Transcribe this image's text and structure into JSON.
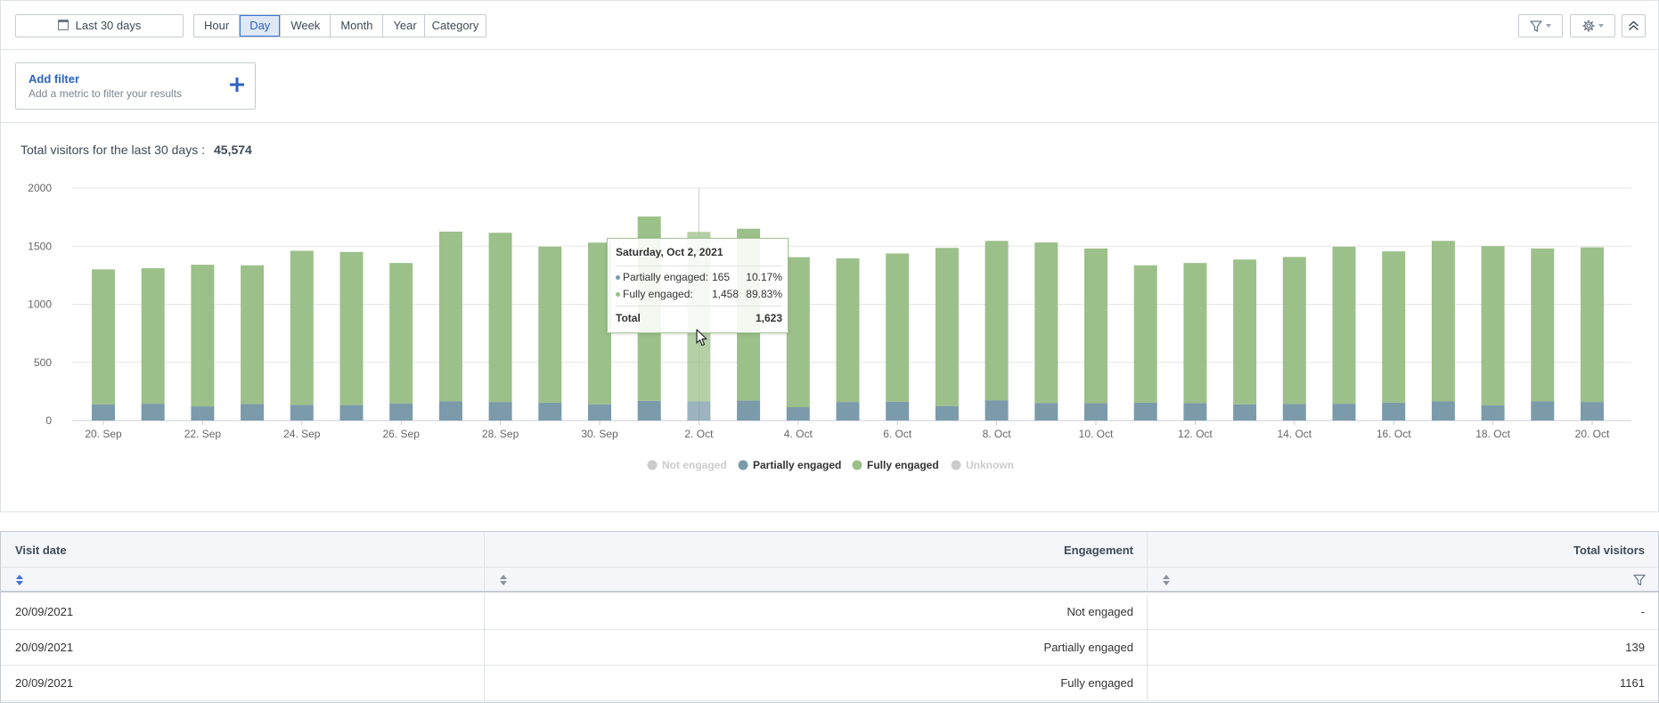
{
  "toolbar": {
    "date_range_label": "Last 30 days",
    "periods": [
      {
        "label": "Hour",
        "active": false
      },
      {
        "label": "Day",
        "active": true
      },
      {
        "label": "Week",
        "active": false
      },
      {
        "label": "Month",
        "active": false
      },
      {
        "label": "Year",
        "active": false
      }
    ],
    "category_label": "Category",
    "icons": [
      "calendar-icon",
      "funnel-icon",
      "gear-icon",
      "double-chevron-up-icon"
    ]
  },
  "filter": {
    "title": "Add filter",
    "subtitle": "Add a metric to filter your results"
  },
  "summary": {
    "label": "Total visitors for the last 30 days :",
    "value": "45,574"
  },
  "chart_data": {
    "type": "bar",
    "stacked": true,
    "categories": [
      "20. Sep",
      "21. Sep",
      "22. Sep",
      "23. Sep",
      "24. Sep",
      "25. Sep",
      "26. Sep",
      "27. Sep",
      "28. Sep",
      "29. Sep",
      "30. Sep",
      "1. Oct",
      "2. Oct",
      "3. Oct",
      "4. Oct",
      "5. Oct",
      "6. Oct",
      "7. Oct",
      "8. Oct",
      "9. Oct",
      "10. Oct",
      "11. Oct",
      "12. Oct",
      "13. Oct",
      "14. Oct",
      "15. Oct",
      "16. Oct",
      "17. Oct",
      "18. Oct",
      "19. Oct",
      "20. Oct"
    ],
    "tick_labels": [
      "20. Sep",
      "22. Sep",
      "24. Sep",
      "26. Sep",
      "28. Sep",
      "30. Sep",
      "2. Oct",
      "4. Oct",
      "6. Oct",
      "8. Oct",
      "10. Oct",
      "12. Oct",
      "14. Oct",
      "16. Oct",
      "18. Oct",
      "20. Oct"
    ],
    "series": [
      {
        "name": "Partially engaged",
        "color": "#7b9bab",
        "values": [
          139,
          145,
          122,
          142,
          135,
          133,
          148,
          165,
          160,
          155,
          140,
          170,
          165,
          172,
          115,
          160,
          162,
          125,
          175,
          152,
          150,
          155,
          150,
          140,
          142,
          145,
          155,
          165,
          130,
          165,
          160
        ]
      },
      {
        "name": "Fully engaged",
        "color": "#9cc089",
        "values": [
          1161,
          1165,
          1218,
          1193,
          1325,
          1317,
          1207,
          1460,
          1455,
          1340,
          1390,
          1585,
          1458,
          1478,
          1290,
          1235,
          1275,
          1360,
          1370,
          1380,
          1330,
          1180,
          1205,
          1245,
          1265,
          1350,
          1300,
          1380,
          1370,
          1315,
          1330
        ]
      }
    ],
    "legend": [
      {
        "name": "Not engaged",
        "color": "#cccccc",
        "active": false
      },
      {
        "name": "Partially engaged",
        "color": "#7b9bab",
        "active": true
      },
      {
        "name": "Fully engaged",
        "color": "#9cc089",
        "active": true
      },
      {
        "name": "Unknown",
        "color": "#cccccc",
        "active": false
      }
    ],
    "yticks": [
      0,
      500,
      1000,
      1500,
      2000
    ],
    "ylim": [
      0,
      2000
    ],
    "grid": true,
    "legend_position": "bottom-center",
    "highlight_index": 12
  },
  "tooltip": {
    "date": "Saturday, Oct 2, 2021",
    "rows": [
      {
        "label": "Partially engaged:",
        "value": "165",
        "percent": "10.17%",
        "color": "#7b9bab"
      },
      {
        "label": "Fully engaged:",
        "value": "1,458",
        "percent": "89.83%",
        "color": "#9cc089"
      }
    ],
    "total_label": "Total",
    "total_value": "1,623"
  },
  "table": {
    "headers": [
      "Visit date",
      "Engagement",
      "Total visitors"
    ],
    "rows": [
      [
        "20/09/2021",
        "Not engaged",
        "-"
      ],
      [
        "20/09/2021",
        "Partially engaged",
        "139"
      ],
      [
        "20/09/2021",
        "Fully engaged",
        "1161"
      ]
    ]
  }
}
